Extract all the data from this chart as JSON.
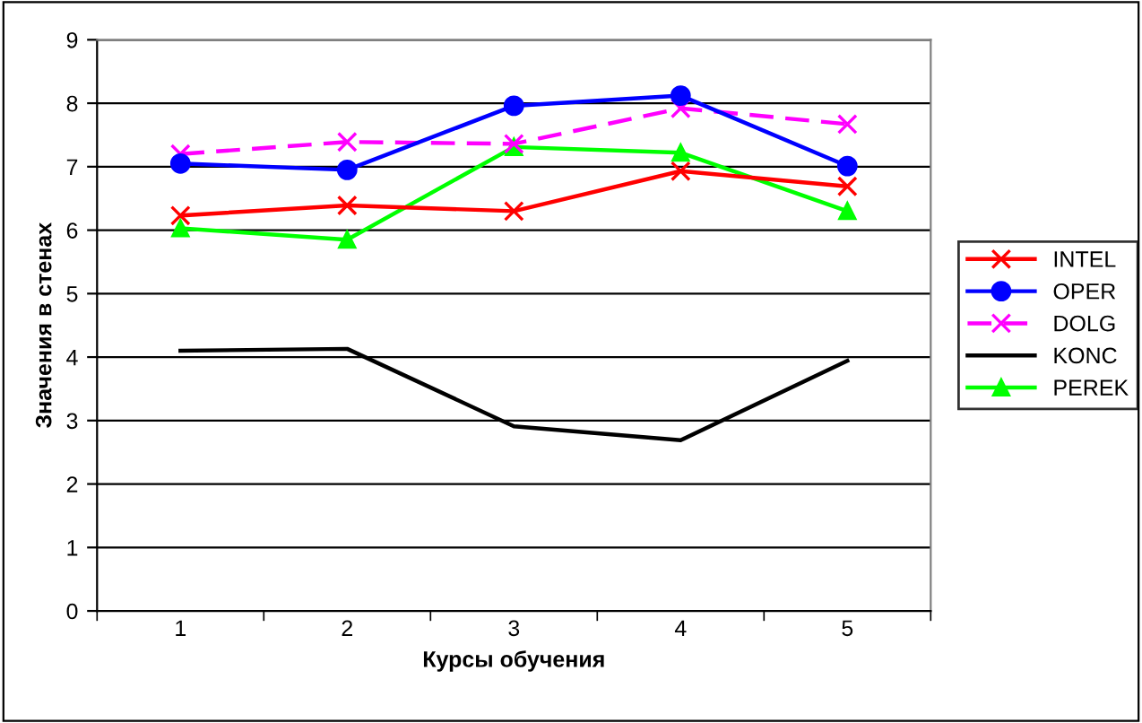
{
  "chart_data": {
    "type": "line",
    "xlabel": "Курсы обучения",
    "ylabel": "Значения в стенах",
    "categories": [
      "1",
      "2",
      "3",
      "4",
      "5"
    ],
    "ylim": [
      0,
      9
    ],
    "yticks": [
      0,
      1,
      2,
      3,
      4,
      5,
      6,
      7,
      8,
      9
    ],
    "grid": "y",
    "legend": "right",
    "series": [
      {
        "name": "INTEL",
        "color": "#ff0000",
        "marker": "cross",
        "line_style": "solid",
        "values": [
          6.23,
          6.39,
          6.3,
          6.93,
          6.69
        ]
      },
      {
        "name": "OPER",
        "color": "#0000ff",
        "marker": "circle",
        "line_style": "solid",
        "values": [
          7.05,
          6.95,
          7.96,
          8.12,
          7.01
        ]
      },
      {
        "name": "DOLG",
        "color": "#ff00ff",
        "marker": "cross",
        "line_style": "dashed",
        "values": [
          7.2,
          7.39,
          7.36,
          7.92,
          7.67
        ]
      },
      {
        "name": "KONC",
        "color": "#000000",
        "marker": "none",
        "line_style": "solid",
        "values": [
          4.1,
          4.13,
          2.91,
          2.69,
          3.94
        ]
      },
      {
        "name": "PEREK",
        "color": "#00ff00",
        "marker": "triangle",
        "line_style": "solid",
        "values": [
          6.03,
          5.85,
          7.31,
          7.22,
          6.3
        ]
      }
    ]
  }
}
